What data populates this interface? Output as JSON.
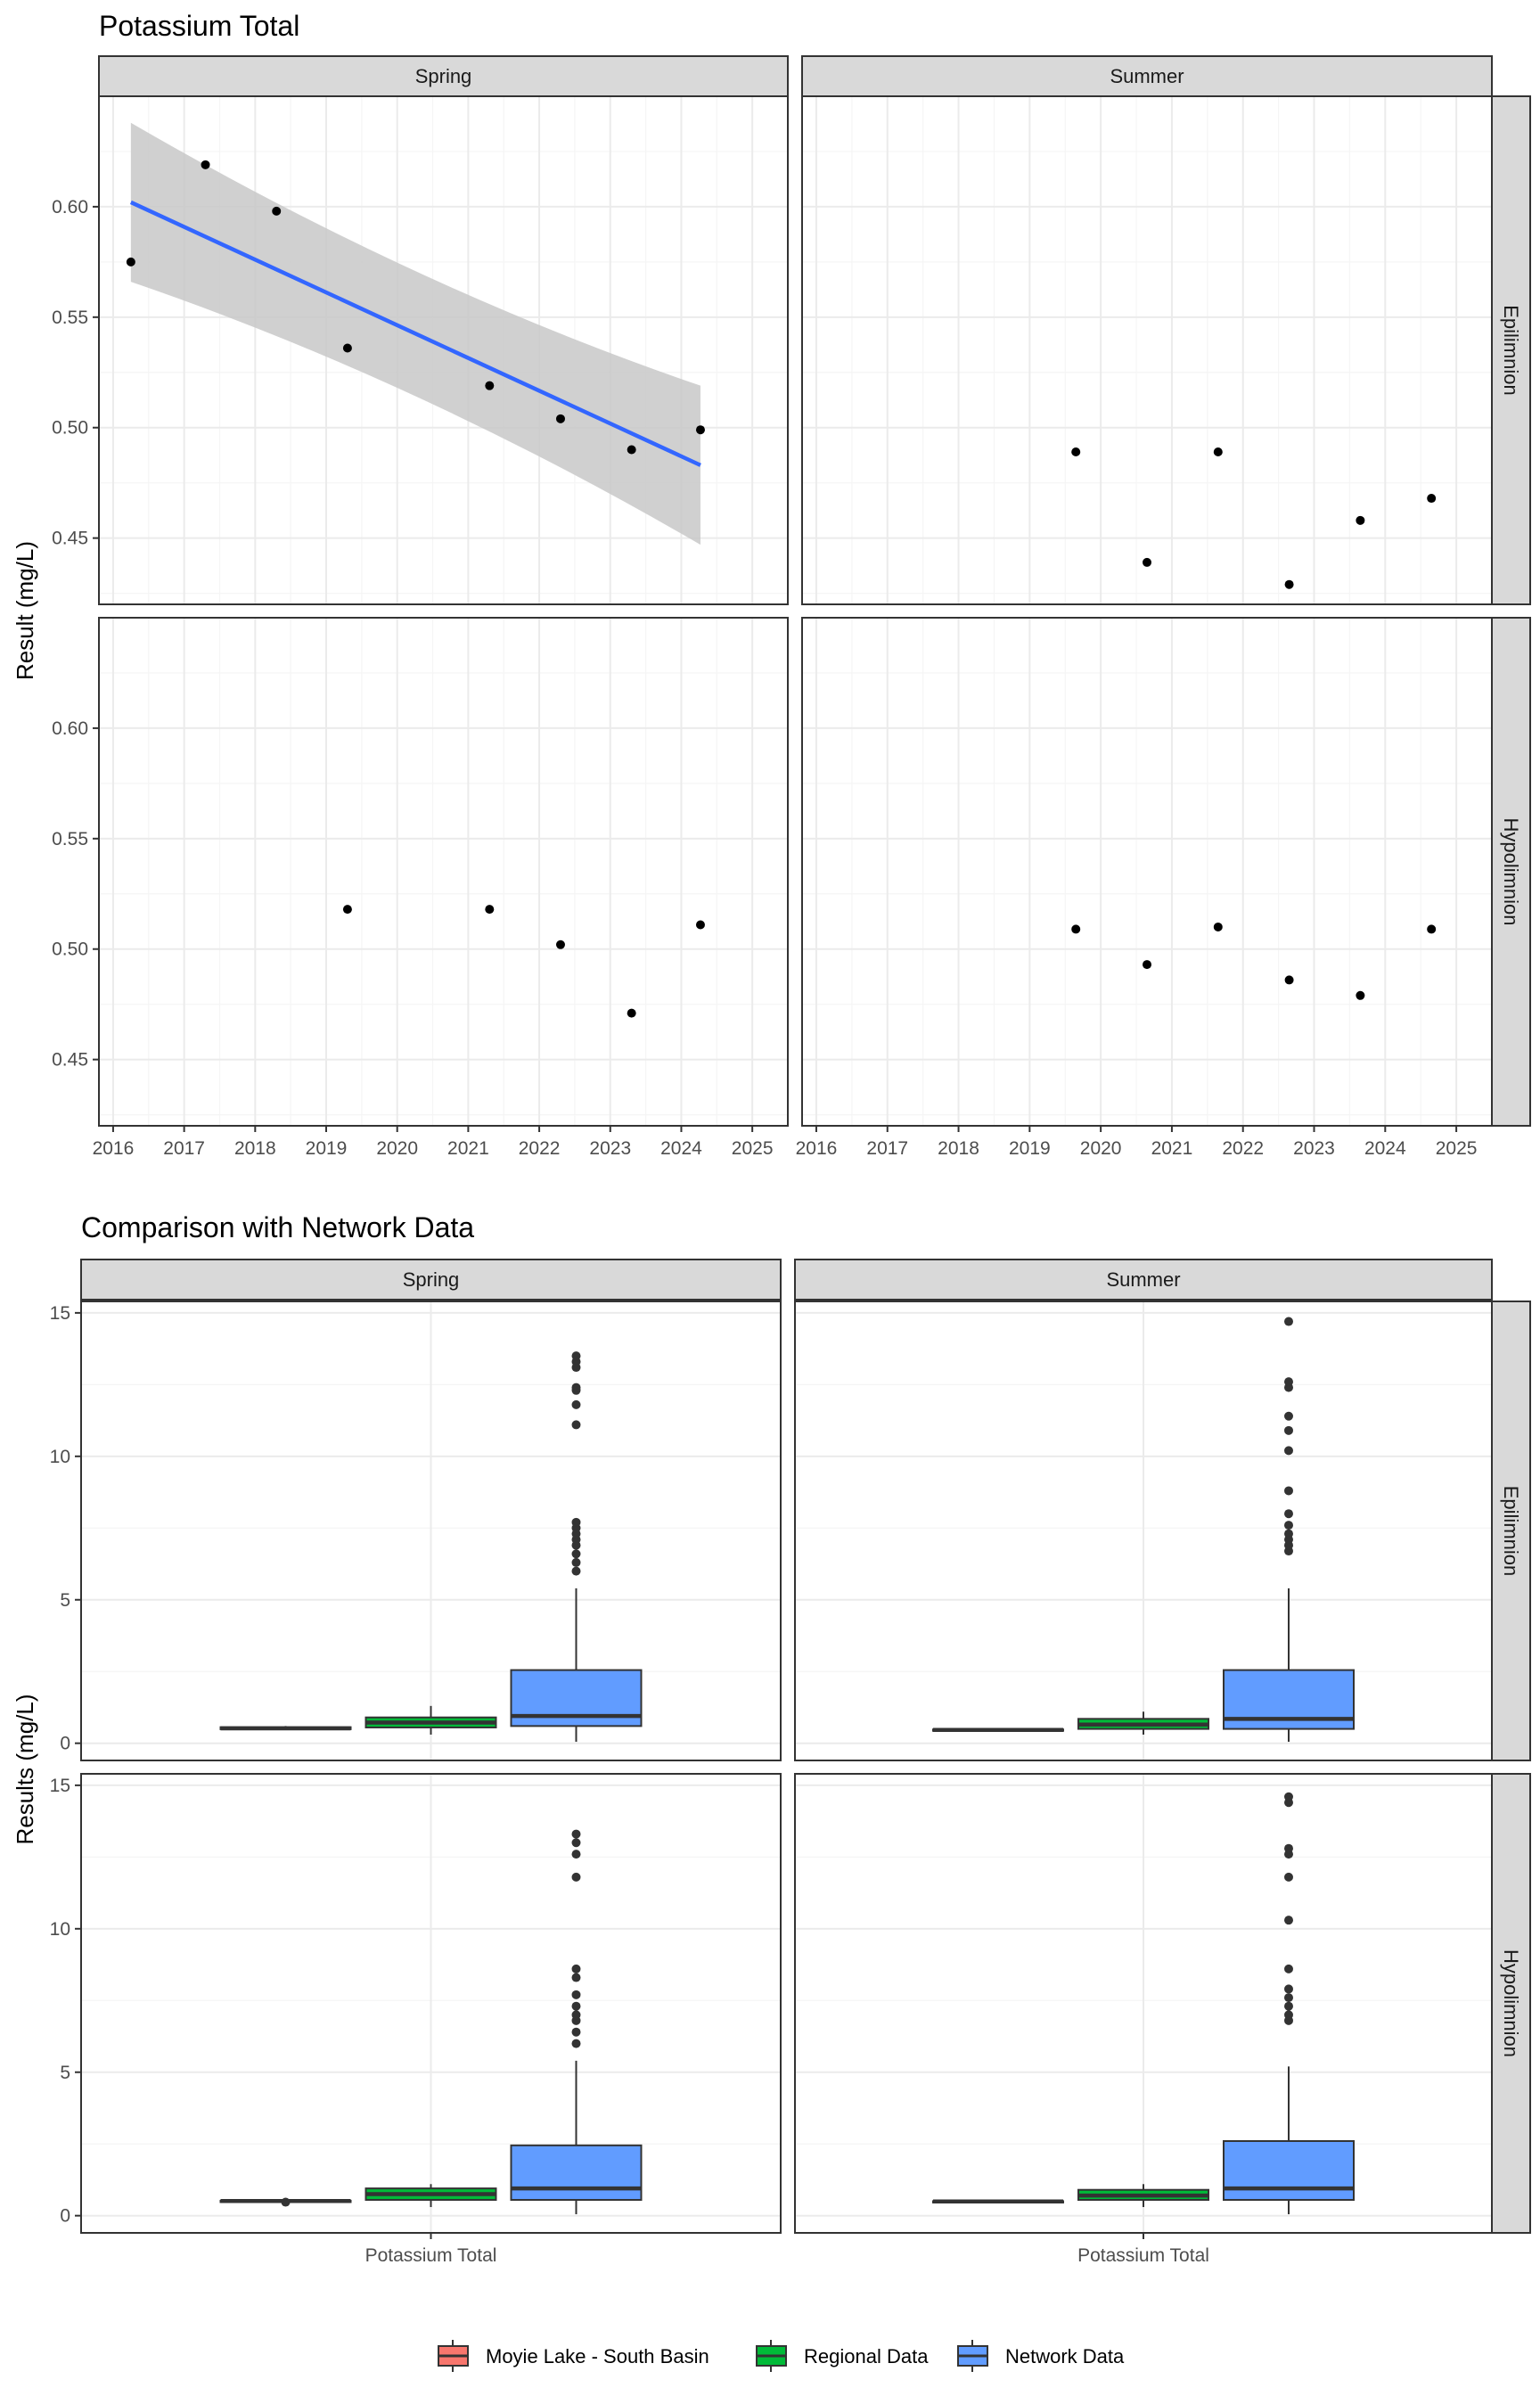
{
  "colors": {
    "panel_border": "#333333",
    "strip_fill": "#d9d9d9",
    "grid_major": "#ebebeb",
    "grid_minor": "#f5f5f5",
    "point": "#000000",
    "trend_line": "#3366ff",
    "confidence_band": "#c8c8c8",
    "lake_fill": "#f8766d",
    "regional_fill": "#00ba38",
    "network_fill": "#619cff"
  },
  "chart_data": [
    {
      "type": "scatter",
      "title": "Potassium Total",
      "ylabel": "Result (mg/L)",
      "xlabel": "",
      "xlim": [
        2015.8,
        2025.5
      ],
      "ylim": [
        0.42,
        0.65
      ],
      "x_ticks": [
        "2016",
        "2017",
        "2018",
        "2019",
        "2020",
        "2021",
        "2022",
        "2023",
        "2024",
        "2025"
      ],
      "y_ticks": [
        "0.45",
        "0.50",
        "0.55",
        "0.60"
      ],
      "col_facets": [
        "Spring",
        "Summer"
      ],
      "row_facets": [
        "Epilimnion",
        "Hypolimnion"
      ],
      "grid": true,
      "panels": [
        {
          "col": "Spring",
          "row": "Epilimnion",
          "points": [
            [
              2016.25,
              0.575
            ],
            [
              2017.3,
              0.619
            ],
            [
              2018.3,
              0.598
            ],
            [
              2019.3,
              0.536
            ],
            [
              2021.3,
              0.519
            ],
            [
              2022.3,
              0.504
            ],
            [
              2023.3,
              0.49
            ],
            [
              2024.27,
              0.499
            ]
          ],
          "trend": {
            "x": [
              2016.25,
              2024.27
            ],
            "y": [
              0.602,
              0.483
            ],
            "ci_lower": [
              0.566,
              0.447
            ],
            "ci_upper": [
              0.638,
              0.519
            ]
          }
        },
        {
          "col": "Summer",
          "row": "Epilimnion",
          "points": [
            [
              2019.65,
              0.489
            ],
            [
              2020.65,
              0.439
            ],
            [
              2021.65,
              0.489
            ],
            [
              2022.65,
              0.429
            ],
            [
              2023.65,
              0.458
            ],
            [
              2024.65,
              0.468
            ]
          ]
        },
        {
          "col": "Spring",
          "row": "Hypolimnion",
          "points": [
            [
              2019.3,
              0.518
            ],
            [
              2021.3,
              0.518
            ],
            [
              2022.3,
              0.502
            ],
            [
              2023.3,
              0.471
            ],
            [
              2024.27,
              0.511
            ]
          ]
        },
        {
          "col": "Summer",
          "row": "Hypolimnion",
          "points": [
            [
              2019.65,
              0.509
            ],
            [
              2020.65,
              0.493
            ],
            [
              2021.65,
              0.51
            ],
            [
              2022.65,
              0.486
            ],
            [
              2023.65,
              0.479
            ],
            [
              2024.65,
              0.509
            ]
          ]
        }
      ]
    },
    {
      "type": "box",
      "title": "Comparison with Network Data",
      "ylabel": "Results (mg/L)",
      "categories": [
        "Potassium Total"
      ],
      "ylim": [
        -0.6,
        15.4
      ],
      "y_ticks": [
        "0",
        "5",
        "10",
        "15"
      ],
      "col_facets": [
        "Spring",
        "Summer"
      ],
      "row_facets": [
        "Epilimnion",
        "Hypolimnion"
      ],
      "grid": true,
      "legend_position": "bottom",
      "series": [
        {
          "name": "Moyie Lake - South Basin",
          "color": "#f8766d"
        },
        {
          "name": "Regional Data",
          "color": "#00ba38"
        },
        {
          "name": "Network Data",
          "color": "#619cff"
        }
      ],
      "panels": [
        {
          "col": "Spring",
          "row": "Epilimnion",
          "boxes": [
            {
              "series": "Moyie Lake - South Basin",
              "whisker_low": 0.47,
              "q1": 0.49,
              "median": 0.52,
              "q3": 0.56,
              "whisker_high": 0.6,
              "outliers": []
            },
            {
              "series": "Regional Data",
              "whisker_low": 0.3,
              "q1": 0.55,
              "median": 0.72,
              "q3": 0.9,
              "whisker_high": 1.3,
              "outliers": []
            },
            {
              "series": "Network Data",
              "whisker_low": 0.05,
              "q1": 0.6,
              "median": 0.95,
              "q3": 2.55,
              "whisker_high": 5.4,
              "outliers": [
                6.0,
                6.3,
                6.6,
                6.9,
                7.1,
                7.3,
                7.5,
                7.7,
                11.1,
                11.8,
                12.3,
                12.4,
                13.1,
                13.3,
                13.5
              ]
            }
          ]
        },
        {
          "col": "Summer",
          "row": "Epilimnion",
          "boxes": [
            {
              "series": "Moyie Lake - South Basin",
              "whisker_low": 0.43,
              "q1": 0.44,
              "median": 0.465,
              "q3": 0.48,
              "whisker_high": 0.49,
              "outliers": []
            },
            {
              "series": "Regional Data",
              "whisker_low": 0.3,
              "q1": 0.5,
              "median": 0.65,
              "q3": 0.85,
              "whisker_high": 1.1,
              "outliers": []
            },
            {
              "series": "Network Data",
              "whisker_low": 0.05,
              "q1": 0.5,
              "median": 0.85,
              "q3": 2.55,
              "whisker_high": 5.4,
              "outliers": [
                6.7,
                6.9,
                7.1,
                7.3,
                7.6,
                8.0,
                8.8,
                10.2,
                10.9,
                11.4,
                12.4,
                12.6,
                14.7
              ]
            }
          ]
        },
        {
          "col": "Spring",
          "row": "Hypolimnion",
          "boxes": [
            {
              "series": "Moyie Lake - South Basin",
              "whisker_low": 0.47,
              "q1": 0.49,
              "median": 0.51,
              "q3": 0.52,
              "whisker_high": 0.52,
              "outliers": [
                0.47
              ]
            },
            {
              "series": "Regional Data",
              "whisker_low": 0.3,
              "q1": 0.55,
              "median": 0.75,
              "q3": 0.95,
              "whisker_high": 1.1,
              "outliers": []
            },
            {
              "series": "Network Data",
              "whisker_low": 0.05,
              "q1": 0.55,
              "median": 0.95,
              "q3": 2.45,
              "whisker_high": 5.4,
              "outliers": [
                6.0,
                6.4,
                6.8,
                7.0,
                7.3,
                7.7,
                8.3,
                8.6,
                11.8,
                12.6,
                13.0,
                13.3
              ]
            }
          ]
        },
        {
          "col": "Summer",
          "row": "Hypolimnion",
          "boxes": [
            {
              "series": "Moyie Lake - South Basin",
              "whisker_low": 0.48,
              "q1": 0.485,
              "median": 0.495,
              "q3": 0.505,
              "whisker_high": 0.51,
              "outliers": []
            },
            {
              "series": "Regional Data",
              "whisker_low": 0.3,
              "q1": 0.55,
              "median": 0.7,
              "q3": 0.9,
              "whisker_high": 1.1,
              "outliers": []
            },
            {
              "series": "Network Data",
              "whisker_low": 0.05,
              "q1": 0.55,
              "median": 0.95,
              "q3": 2.6,
              "whisker_high": 5.2,
              "outliers": [
                6.8,
                7.0,
                7.3,
                7.6,
                7.9,
                8.6,
                10.3,
                11.8,
                12.6,
                12.8,
                14.4,
                14.6
              ]
            }
          ]
        }
      ]
    }
  ]
}
